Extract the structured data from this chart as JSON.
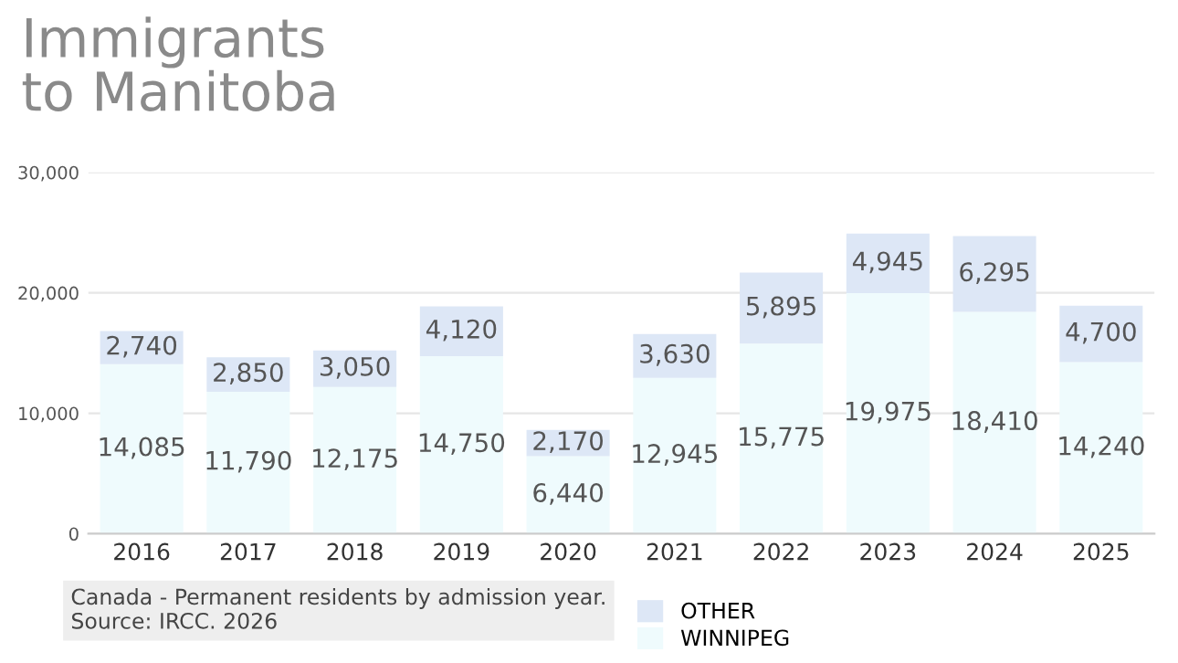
{
  "chart_data": {
    "type": "bar",
    "title": "Immigrants\nto Manitoba",
    "stacked": true,
    "categories": [
      "2016",
      "2017",
      "2018",
      "2019",
      "2020",
      "2021",
      "2022",
      "2023",
      "2024",
      "2025"
    ],
    "series": [
      {
        "name": "WINNIPEG",
        "color": "#effbfd",
        "values": [
          14085,
          11790,
          12175,
          14750,
          6440,
          12945,
          15775,
          19975,
          18410,
          14240
        ],
        "value_labels": [
          "14,085",
          "11,790",
          "12,175",
          "14,750",
          "6,440",
          "12,945",
          "15,775",
          "19,975",
          "18,410",
          "14,240"
        ]
      },
      {
        "name": "OTHER",
        "color": "#dde7f6",
        "values": [
          2740,
          2850,
          3050,
          4120,
          2170,
          3630,
          5895,
          4945,
          6295,
          4700
        ],
        "value_labels": [
          "2,740",
          "2,850",
          "3,050",
          "4,120",
          "2,170",
          "3,630",
          "5,895",
          "4,945",
          "6,295",
          "4,700"
        ]
      }
    ],
    "ylim": [
      0,
      30000
    ],
    "yticks": [
      0,
      {
        "value": 10000,
        "label": "10,000"
      },
      {
        "value": 20000,
        "label": "20,000"
      },
      {
        "value": 30000,
        "label": "30,000"
      }
    ],
    "grid": "y",
    "legend": "bottom",
    "annotations": [
      "Canada - Permanent residents by admission year.\nSource: IRCC. 2026"
    ]
  }
}
